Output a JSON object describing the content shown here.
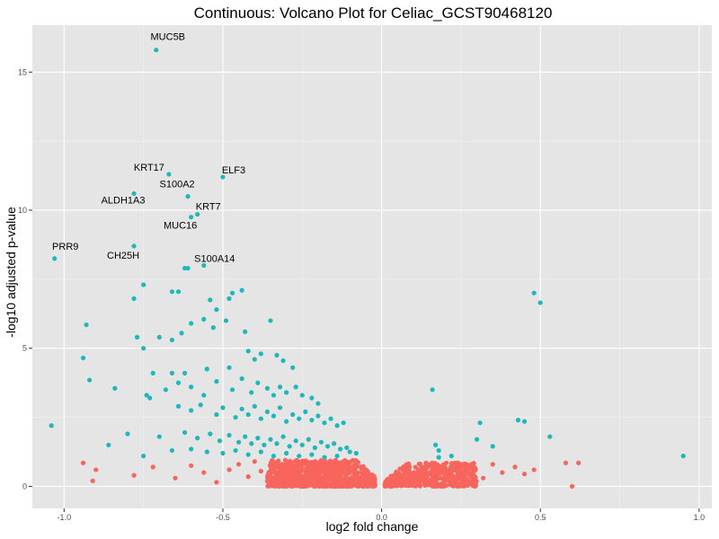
{
  "chart_data": {
    "type": "scatter",
    "title": "Continuous: Volcano Plot for Celiac_GCST90468120",
    "xlabel": "log2 fold change",
    "ylabel": "-log10 adjusted p-value",
    "xlim": [
      -1.1,
      1.04
    ],
    "ylim": [
      -0.8,
      16.7
    ],
    "x_ticks": [
      -1.0,
      -0.5,
      0.0,
      0.5,
      1.0
    ],
    "x_tick_labels": [
      "-1.0",
      "-0.5",
      "0.0",
      "0.5",
      "1.0"
    ],
    "y_ticks": [
      0,
      5,
      10,
      15
    ],
    "y_tick_labels": [
      "0",
      "5",
      "10",
      "15"
    ],
    "grid": true,
    "legend": "none",
    "colors": {
      "significant": "#1fb7ba",
      "not_significant": "#f8655c",
      "panel_background": "#e5e5e5",
      "grid_major": "#ffffff",
      "grid_minor": "#f2f2f2"
    },
    "series": [
      {
        "color": "#1fb7ba",
        "points": [
          [
            -0.71,
            15.8
          ],
          [
            -0.67,
            11.3
          ],
          [
            -0.5,
            11.2
          ],
          [
            -0.78,
            10.6
          ],
          [
            -0.61,
            10.5
          ],
          [
            -0.58,
            9.85
          ],
          [
            -0.6,
            9.75
          ],
          [
            -1.03,
            8.25
          ],
          [
            -0.78,
            8.7
          ],
          [
            -0.56,
            8.0
          ],
          [
            -0.62,
            7.9
          ],
          [
            -0.61,
            7.9
          ],
          [
            0.48,
            7.0
          ],
          [
            0.5,
            6.65
          ],
          [
            -0.75,
            7.3
          ],
          [
            -0.66,
            7.05
          ],
          [
            -0.64,
            7.05
          ],
          [
            -0.44,
            7.1
          ],
          [
            -0.47,
            7.0
          ],
          [
            -0.48,
            6.8
          ],
          [
            -0.54,
            6.75
          ],
          [
            -0.52,
            6.4
          ],
          [
            -0.49,
            6.0
          ],
          [
            -0.35,
            6.0
          ],
          [
            -0.78,
            6.8
          ],
          [
            -0.56,
            6.05
          ],
          [
            -0.6,
            5.9
          ],
          [
            -0.53,
            5.75
          ],
          [
            -0.43,
            5.6
          ],
          [
            -0.93,
            5.85
          ],
          [
            -0.63,
            5.55
          ],
          [
            -0.66,
            5.3
          ],
          [
            -0.7,
            5.4
          ],
          [
            -0.77,
            5.4
          ],
          [
            -0.75,
            5.0
          ],
          [
            -0.94,
            4.65
          ],
          [
            -0.72,
            4.1
          ],
          [
            -0.66,
            4.1
          ],
          [
            -0.62,
            4.1
          ],
          [
            -0.55,
            4.25
          ],
          [
            -0.48,
            4.3
          ],
          [
            -0.42,
            4.9
          ],
          [
            -0.4,
            4.6
          ],
          [
            -0.38,
            4.8
          ],
          [
            -0.33,
            4.75
          ],
          [
            -0.31,
            4.55
          ],
          [
            -0.28,
            4.3
          ],
          [
            -0.92,
            3.85
          ],
          [
            -0.84,
            3.55
          ],
          [
            -0.74,
            3.3
          ],
          [
            -0.73,
            3.2
          ],
          [
            -0.68,
            3.5
          ],
          [
            -0.64,
            3.75
          ],
          [
            -0.6,
            3.6
          ],
          [
            -0.56,
            3.3
          ],
          [
            -0.52,
            3.8
          ],
          [
            -0.47,
            3.5
          ],
          [
            -0.44,
            3.9
          ],
          [
            -0.41,
            3.4
          ],
          [
            -0.39,
            3.75
          ],
          [
            -0.36,
            3.55
          ],
          [
            -0.34,
            3.3
          ],
          [
            -0.32,
            3.6
          ],
          [
            -0.3,
            3.4
          ],
          [
            -0.27,
            3.6
          ],
          [
            -0.25,
            3.3
          ],
          [
            -0.22,
            3.2
          ],
          [
            -0.2,
            3.0
          ],
          [
            0.16,
            3.5
          ],
          [
            -0.64,
            2.9
          ],
          [
            -0.6,
            2.75
          ],
          [
            -0.57,
            2.95
          ],
          [
            -0.52,
            2.6
          ],
          [
            -0.5,
            2.85
          ],
          [
            -0.46,
            2.5
          ],
          [
            -0.44,
            2.8
          ],
          [
            -0.42,
            2.6
          ],
          [
            -0.4,
            2.9
          ],
          [
            -0.38,
            2.45
          ],
          [
            -0.36,
            2.7
          ],
          [
            -0.34,
            2.55
          ],
          [
            -0.32,
            2.85
          ],
          [
            -0.3,
            2.35
          ],
          [
            -0.28,
            2.6
          ],
          [
            -0.26,
            2.45
          ],
          [
            -0.24,
            2.7
          ],
          [
            -0.22,
            2.4
          ],
          [
            -0.2,
            2.55
          ],
          [
            -0.18,
            2.3
          ],
          [
            -0.16,
            2.45
          ],
          [
            -0.14,
            2.2
          ],
          [
            -0.12,
            2.3
          ],
          [
            -1.04,
            2.2
          ],
          [
            0.31,
            2.3
          ],
          [
            0.43,
            2.4
          ],
          [
            0.45,
            2.35
          ],
          [
            -0.8,
            1.9
          ],
          [
            -0.7,
            1.8
          ],
          [
            -0.62,
            1.95
          ],
          [
            -0.58,
            1.75
          ],
          [
            -0.54,
            1.9
          ],
          [
            -0.51,
            1.65
          ],
          [
            -0.48,
            1.85
          ],
          [
            -0.45,
            1.6
          ],
          [
            -0.43,
            1.8
          ],
          [
            -0.41,
            1.55
          ],
          [
            -0.39,
            1.75
          ],
          [
            -0.37,
            1.5
          ],
          [
            -0.35,
            1.7
          ],
          [
            -0.33,
            1.55
          ],
          [
            -0.31,
            1.8
          ],
          [
            -0.29,
            1.45
          ],
          [
            -0.27,
            1.65
          ],
          [
            -0.25,
            1.5
          ],
          [
            -0.23,
            1.7
          ],
          [
            -0.21,
            1.4
          ],
          [
            -0.19,
            1.6
          ],
          [
            -0.17,
            1.45
          ],
          [
            -0.15,
            1.55
          ],
          [
            -0.13,
            1.35
          ],
          [
            -0.11,
            1.4
          ],
          [
            -0.1,
            1.25
          ],
          [
            -0.08,
            1.2
          ],
          [
            0.53,
            1.8
          ],
          [
            0.3,
            1.7
          ],
          [
            0.17,
            1.5
          ],
          [
            0.18,
            1.3
          ],
          [
            0.35,
            1.45
          ],
          [
            -0.86,
            1.5
          ],
          [
            -0.75,
            1.1
          ],
          [
            -0.66,
            1.3
          ],
          [
            -0.6,
            1.35
          ],
          [
            -0.55,
            1.25
          ],
          [
            -0.5,
            1.2
          ],
          [
            -0.46,
            1.3
          ],
          [
            -0.42,
            1.15
          ],
          [
            -0.38,
            1.25
          ],
          [
            -0.34,
            1.1
          ],
          [
            -0.3,
            1.2
          ],
          [
            -0.26,
            1.1
          ],
          [
            -0.22,
            1.15
          ],
          [
            -0.18,
            1.05
          ],
          [
            -0.14,
            1.1
          ],
          [
            0.18,
            1.05
          ],
          [
            0.22,
            1.1
          ],
          [
            0.95,
            1.1
          ]
        ]
      },
      {
        "color": "#f8655c",
        "points": [
          [
            -0.94,
            0.85
          ],
          [
            -0.9,
            0.6
          ],
          [
            -0.91,
            0.2
          ],
          [
            -0.78,
            0.4
          ],
          [
            -0.72,
            0.7
          ],
          [
            -0.65,
            0.3
          ],
          [
            -0.6,
            0.75
          ],
          [
            -0.56,
            0.5
          ],
          [
            -0.52,
            0.15
          ],
          [
            -0.48,
            0.6
          ],
          [
            -0.45,
            0.8
          ],
          [
            -0.42,
            0.35
          ],
          [
            -0.4,
            0.9
          ],
          [
            -0.38,
            0.55
          ],
          [
            -0.36,
            0.2
          ],
          [
            -0.34,
            0.75
          ],
          [
            0.58,
            0.85
          ],
          [
            0.62,
            0.85
          ],
          [
            0.6,
            0.0
          ],
          [
            0.48,
            0.6
          ],
          [
            0.45,
            0.45
          ],
          [
            0.42,
            0.7
          ],
          [
            0.38,
            0.5
          ],
          [
            0.35,
            0.8
          ],
          [
            0.32,
            0.3
          ],
          [
            0.29,
            0.65
          ],
          [
            0.27,
            0.45
          ],
          [
            0.24,
            0.85
          ],
          [
            0.22,
            0.2
          ],
          [
            0.2,
            0.55
          ]
        ],
        "dense_cloud": [
          {
            "x_range": [
              -0.36,
              -0.02
            ],
            "y_range": [
              0.0,
              0.95
            ],
            "count": 900
          },
          {
            "x_range": [
              0.01,
              0.3
            ],
            "y_range": [
              0.0,
              0.85
            ],
            "count": 420
          }
        ]
      }
    ],
    "annotations": [
      {
        "text": "MUC5B",
        "x": -0.71,
        "y": 15.8
      },
      {
        "text": "KRT17",
        "x": -0.67,
        "y": 11.3
      },
      {
        "text": "ELF3",
        "x": -0.5,
        "y": 11.2
      },
      {
        "text": "ALDH1A3",
        "x": -0.78,
        "y": 10.6
      },
      {
        "text": "S100A2",
        "x": -0.61,
        "y": 10.5
      },
      {
        "text": "KRT7",
        "x": -0.58,
        "y": 9.85
      },
      {
        "text": "MUC16",
        "x": -0.6,
        "y": 9.75
      },
      {
        "text": "PRR9",
        "x": -1.03,
        "y": 8.25
      },
      {
        "text": "CH25H",
        "x": -0.78,
        "y": 8.7
      },
      {
        "text": "S100A14",
        "x": -0.56,
        "y": 8.0
      }
    ]
  }
}
